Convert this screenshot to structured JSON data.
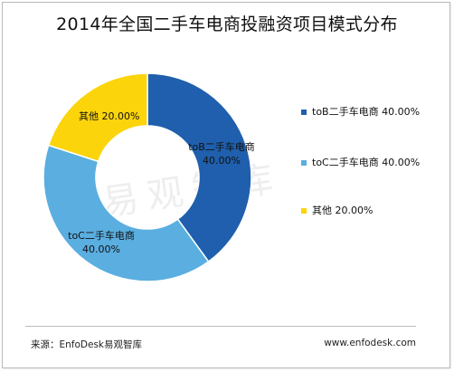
{
  "chart_data": {
    "type": "pie",
    "variant": "donut",
    "title": "2014年全国二手车电商投融资项目模式分布",
    "categories": [
      "toB二手车电商",
      "toC二手车电商",
      "其他"
    ],
    "values": [
      40,
      40,
      20
    ],
    "value_labels": [
      "40.00%",
      "40.00%",
      "20.00%"
    ],
    "colors": [
      "#1f5fad",
      "#5aaee0",
      "#fbd40b"
    ],
    "legend_placement": "right"
  },
  "watermark": "易观智库",
  "footer": {
    "source": "来源：EnfoDesk易观智库",
    "website": "www.enfodesk.com"
  }
}
